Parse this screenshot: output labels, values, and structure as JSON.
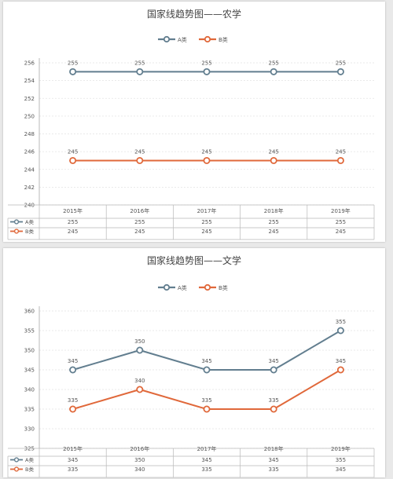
{
  "colors": {
    "a": "#627e8f",
    "b": "#e0683a",
    "grid": "#e4e4e4",
    "axis": "#b9b9b9",
    "text": "#555555"
  },
  "chart_data": [
    {
      "type": "line",
      "title": "国家线趋势图——农学",
      "categories": [
        "2015年",
        "2016年",
        "2017年",
        "2018年",
        "2019年"
      ],
      "series": [
        {
          "name": "A类",
          "values": [
            255,
            255,
            255,
            255,
            255
          ]
        },
        {
          "name": "B类",
          "values": [
            245,
            245,
            245,
            245,
            245
          ]
        }
      ],
      "ylim": [
        240,
        256
      ],
      "yticks": [
        240,
        242,
        244,
        246,
        248,
        250,
        252,
        254,
        256
      ],
      "grid": true,
      "legend": "top-center",
      "data_table": true
    },
    {
      "type": "line",
      "title": "国家线趋势图——文学",
      "categories": [
        "2015年",
        "2016年",
        "2017年",
        "2018年",
        "2019年"
      ],
      "series": [
        {
          "name": "A类",
          "values": [
            345,
            350,
            345,
            345,
            355
          ]
        },
        {
          "name": "B类",
          "values": [
            335,
            340,
            335,
            335,
            345
          ]
        }
      ],
      "ylim": [
        325,
        360
      ],
      "yticks": [
        325,
        330,
        335,
        340,
        345,
        350,
        355,
        360
      ],
      "grid": true,
      "legend": "top-center",
      "data_table": true
    }
  ]
}
